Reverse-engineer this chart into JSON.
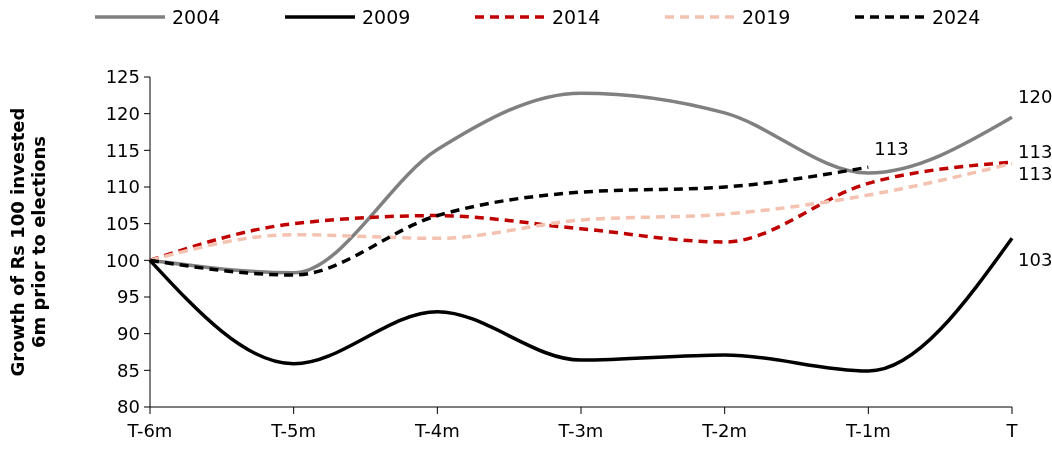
{
  "chart_data": {
    "type": "line",
    "ylabel": "Growth of Rs 100 invested 6m prior to elections",
    "categories": [
      "T-6m",
      "T-5m",
      "T-4m",
      "T-3m",
      "T-2m",
      "T-1m",
      "T"
    ],
    "ylim": [
      80,
      125
    ],
    "yticks": [
      80,
      85,
      90,
      95,
      100,
      105,
      110,
      115,
      120,
      125
    ],
    "grid": false,
    "legend": "top",
    "marker": "none",
    "series": [
      {
        "name": "2004",
        "color": "#808080",
        "line_style": "solid",
        "values": [
          100,
          98.3,
          115.1,
          122.8,
          120.1,
          111.9,
          119.5
        ],
        "value_labels": [
          null,
          null,
          null,
          null,
          null,
          null,
          "120"
        ]
      },
      {
        "name": "2009",
        "color": "#000000",
        "line_style": "solid",
        "values": [
          100,
          85.9,
          93.0,
          86.4,
          87.1,
          84.9,
          103.0
        ],
        "value_labels": [
          null,
          null,
          null,
          null,
          null,
          null,
          "103"
        ]
      },
      {
        "name": "2014",
        "color": "#c00000",
        "line_style": "dashed",
        "values": [
          100,
          105.0,
          106.1,
          104.3,
          102.5,
          110.5,
          113.4
        ],
        "value_labels": [
          null,
          null,
          null,
          null,
          null,
          null,
          "113"
        ]
      },
      {
        "name": "2019",
        "color": "#f4c2b0",
        "line_style": "dashed",
        "values": [
          100,
          103.5,
          103.0,
          105.5,
          106.3,
          108.9,
          113.2
        ],
        "value_labels": [
          null,
          null,
          null,
          null,
          null,
          null,
          "113"
        ]
      },
      {
        "name": "2024",
        "color": "#000000",
        "line_style": "dashed",
        "values": [
          100,
          98.0,
          106.1,
          109.3,
          110.0,
          112.7,
          null
        ],
        "value_labels": [
          null,
          null,
          null,
          null,
          null,
          "113",
          null
        ]
      }
    ]
  }
}
